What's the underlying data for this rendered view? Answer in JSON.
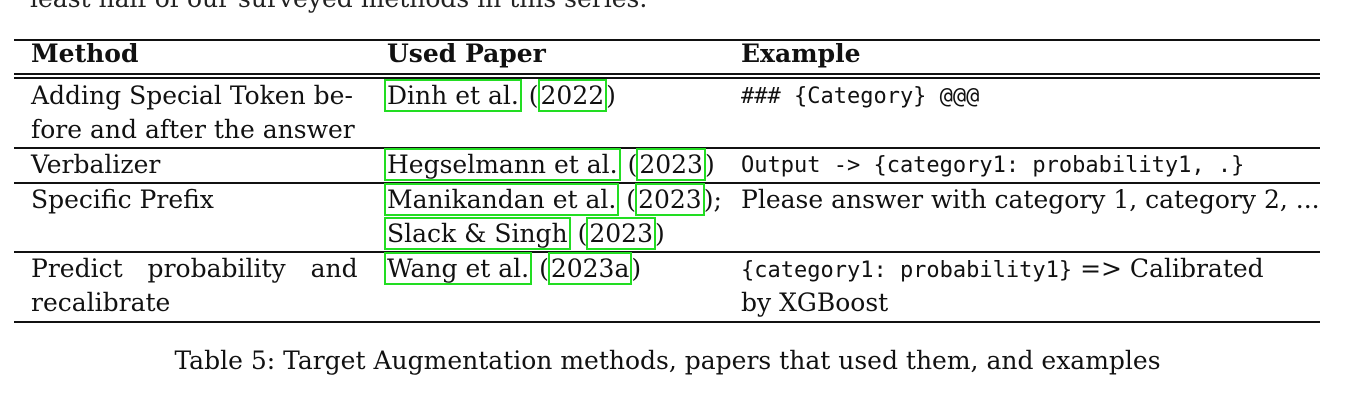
{
  "cut_off_text": "least half of our surveyed methods in this series.",
  "table": {
    "headers": [
      "Method",
      "Used Paper",
      "Example"
    ],
    "rows": [
      {
        "method": [
          "Adding Special Token be-",
          "fore and after the answer"
        ],
        "papers": [
          [
            {
              "author": "Dinh et al.",
              "year": "2022"
            }
          ]
        ],
        "example": "### {Category} @@@"
      },
      {
        "method": [
          "Verbalizer"
        ],
        "papers": [
          [
            {
              "author": "Hegselmann et al.",
              "year": "2023"
            }
          ]
        ],
        "example": "Output -> {category1: probability1, .}"
      },
      {
        "method": [
          "Specific Prefix"
        ],
        "papers": [
          [
            {
              "author": "Manikandan et al.",
              "year": "2023",
              "sep": ";"
            }
          ],
          [
            {
              "author": "Slack & Singh",
              "year": "2023"
            }
          ]
        ],
        "example": "Please answer with category 1, category 2, ..."
      },
      {
        "method": [
          "Predict probability and",
          "recalibrate"
        ],
        "papers": [
          [
            {
              "author": "Wang et al.",
              "year": "2023a"
            }
          ]
        ],
        "example_mono": "{category1: probability1}",
        "example_text": [
          "=> Calibrated",
          "by XGBoost"
        ]
      }
    ]
  },
  "caption": "Table 5: Target Augmentation methods, papers that used them, and examples"
}
